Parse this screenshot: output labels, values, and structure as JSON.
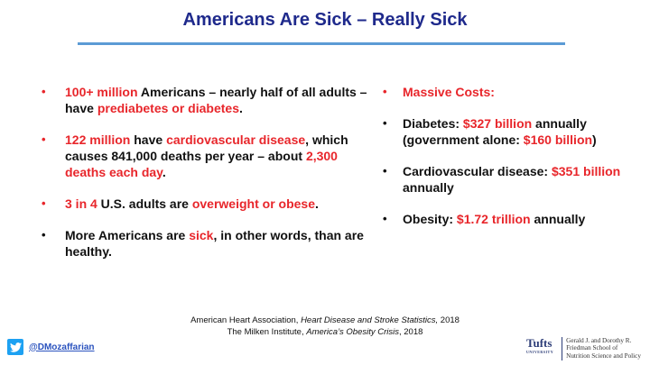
{
  "title": "Americans Are Sick – Really Sick",
  "bullet_char": "•",
  "left_items": [
    {
      "p1": "100+ million",
      "p2": " Americans – nearly half of all adults – have ",
      "p3": "prediabetes or diabetes",
      "p4": "."
    },
    {
      "p1": "122 million",
      "p2": " have ",
      "p3": "cardiovascular disease",
      "p4": ", which causes 841,000 deaths per year – about ",
      "p5": "2,300 deaths each day",
      "p6": "."
    },
    {
      "p1": "3 in 4",
      "p2": " U.S. adults are ",
      "p3": "overweight or obese",
      "p4": "."
    },
    {
      "p1": "More Americans are ",
      "p2": "sick",
      "p3": ", in other words, than are healthy."
    }
  ],
  "right_items": [
    {
      "p1": "Massive Costs:"
    },
    {
      "p1": "Diabetes:  ",
      "p2": "$327 billion",
      "p3": " annually (government alone:  ",
      "p4": "$160 billion",
      "p5": ")"
    },
    {
      "p1": "Cardiovascular disease:  ",
      "p2": "$351 billion",
      "p3": " annually"
    },
    {
      "p1": "Obesity:  ",
      "p2": "$1.72 trillion",
      "p3": " annually"
    }
  ],
  "references": [
    {
      "pre": "American Heart Association, ",
      "ital": "Heart Disease and Stroke Statistics,",
      "post": " 2018"
    },
    {
      "pre": "The Milken Institute, ",
      "ital": "America’s Obesity Crisis",
      "post": ", 2018"
    }
  ],
  "footer": {
    "twitter_handle": "@DMozaffarian",
    "logo_text": "Tufts",
    "logo_sub": "UNIVERSITY",
    "school_lines": [
      "Gerald J. and Dorothy R.",
      "Friedman School of",
      "Nutrition Science and Policy"
    ]
  },
  "colors": {
    "title": "#1f2a8c",
    "accent_red": "#e8262b",
    "rule": "#5b9bd5",
    "twitter": "#1da1f2"
  },
  "icons": {
    "twitter": "twitter-bird-icon"
  }
}
